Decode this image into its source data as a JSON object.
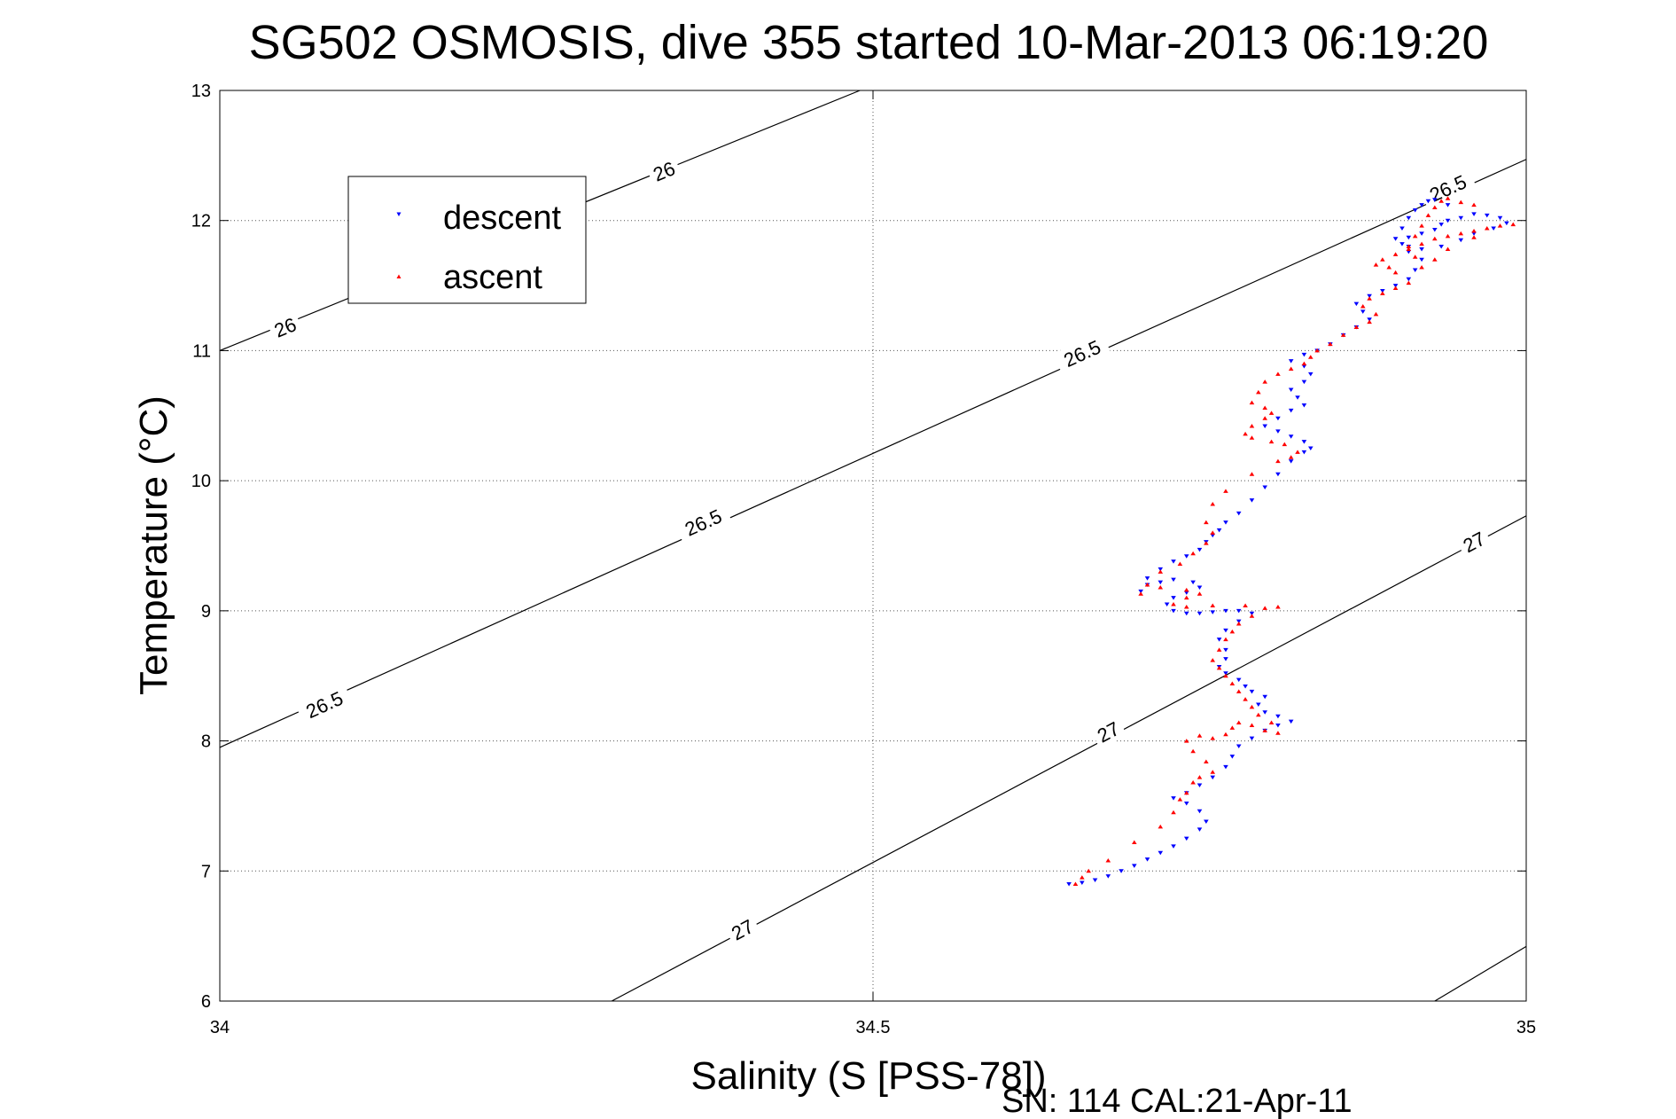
{
  "chart_data": {
    "type": "scatter",
    "title": "SG502 OSMOSIS, dive 355 started 10-Mar-2013 06:19:20",
    "xlabel": "Salinity (S [PSS-78])",
    "ylabel": "Temperature (°C)",
    "footer": "SN: 114  CAL:21-Apr-11",
    "xlim": [
      34,
      35
    ],
    "ylim": [
      6,
      13
    ],
    "xticks": [
      34,
      34.5,
      35
    ],
    "xtick_labels": [
      "34",
      "34.5",
      "35"
    ],
    "yticks": [
      6,
      7,
      8,
      9,
      10,
      11,
      12,
      13
    ],
    "ytick_labels": [
      "6",
      "7",
      "8",
      "9",
      "10",
      "11",
      "12",
      "13"
    ],
    "grid": true,
    "legend": {
      "position": "top-left",
      "entries": [
        "descent",
        "ascent"
      ]
    },
    "colors": {
      "descent": "#0000ff",
      "ascent": "#ff0000",
      "contour": "#000000"
    },
    "contours": [
      {
        "label": "26",
        "points": [
          [
            34.0,
            11.0
          ],
          [
            34.49,
            13.0
          ]
        ],
        "label_at": [
          [
            34.05,
            11.18
          ],
          [
            34.34,
            12.38
          ]
        ]
      },
      {
        "label": "26.5",
        "points": [
          [
            34.0,
            7.95
          ],
          [
            35.0,
            12.47
          ]
        ],
        "label_at": [
          [
            34.08,
            8.28
          ],
          [
            34.37,
            9.68
          ],
          [
            34.66,
            10.98
          ],
          [
            34.94,
            12.25
          ]
        ]
      },
      {
        "label": "27",
        "points": [
          [
            34.3,
            6.0
          ],
          [
            35.0,
            9.73
          ]
        ],
        "label_at": [
          [
            34.4,
            6.55
          ],
          [
            34.68,
            8.07
          ],
          [
            34.96,
            9.53
          ]
        ]
      },
      {
        "label": "",
        "points": [
          [
            34.93,
            6.0
          ],
          [
            35.0,
            6.42
          ]
        ],
        "label_at": []
      }
    ],
    "series": [
      {
        "name": "descent",
        "marker": "triangle-down",
        "points": [
          [
            34.65,
            6.9
          ],
          [
            34.66,
            6.91
          ],
          [
            34.67,
            6.93
          ],
          [
            34.68,
            6.96
          ],
          [
            34.69,
            7.0
          ],
          [
            34.7,
            7.04
          ],
          [
            34.71,
            7.09
          ],
          [
            34.72,
            7.14
          ],
          [
            34.73,
            7.19
          ],
          [
            34.74,
            7.25
          ],
          [
            34.75,
            7.32
          ],
          [
            34.755,
            7.38
          ],
          [
            34.75,
            7.46
          ],
          [
            34.74,
            7.52
          ],
          [
            34.73,
            7.56
          ],
          [
            34.74,
            7.6
          ],
          [
            34.75,
            7.66
          ],
          [
            34.76,
            7.72
          ],
          [
            34.77,
            7.8
          ],
          [
            34.775,
            7.88
          ],
          [
            34.78,
            7.96
          ],
          [
            34.79,
            8.02
          ],
          [
            34.8,
            8.08
          ],
          [
            34.81,
            8.12
          ],
          [
            34.82,
            8.15
          ],
          [
            34.81,
            8.19
          ],
          [
            34.8,
            8.22
          ],
          [
            34.795,
            8.28
          ],
          [
            34.8,
            8.34
          ],
          [
            34.79,
            8.38
          ],
          [
            34.785,
            8.42
          ],
          [
            34.78,
            8.47
          ],
          [
            34.77,
            8.52
          ],
          [
            34.765,
            8.57
          ],
          [
            34.77,
            8.63
          ],
          [
            34.77,
            8.7
          ],
          [
            34.765,
            8.78
          ],
          [
            34.77,
            8.85
          ],
          [
            34.78,
            8.92
          ],
          [
            34.79,
            8.98
          ],
          [
            34.78,
            9.0
          ],
          [
            34.77,
            9.0
          ],
          [
            34.76,
            8.99
          ],
          [
            34.75,
            8.98
          ],
          [
            34.74,
            8.98
          ],
          [
            34.73,
            9.0
          ],
          [
            34.725,
            9.05
          ],
          [
            34.73,
            9.1
          ],
          [
            34.74,
            9.14
          ],
          [
            34.75,
            9.18
          ],
          [
            34.745,
            9.22
          ],
          [
            34.73,
            9.24
          ],
          [
            34.72,
            9.22
          ],
          [
            34.71,
            9.2
          ],
          [
            34.705,
            9.15
          ],
          [
            34.71,
            9.25
          ],
          [
            34.72,
            9.32
          ],
          [
            34.73,
            9.38
          ],
          [
            34.74,
            9.42
          ],
          [
            34.75,
            9.47
          ],
          [
            34.755,
            9.53
          ],
          [
            34.76,
            9.58
          ],
          [
            34.765,
            9.62
          ],
          [
            34.77,
            9.68
          ],
          [
            34.78,
            9.75
          ],
          [
            34.79,
            9.85
          ],
          [
            34.8,
            9.95
          ],
          [
            34.81,
            10.05
          ],
          [
            34.82,
            10.15
          ],
          [
            34.83,
            10.22
          ],
          [
            34.835,
            10.25
          ],
          [
            34.83,
            10.3
          ],
          [
            34.82,
            10.34
          ],
          [
            34.81,
            10.38
          ],
          [
            34.8,
            10.42
          ],
          [
            34.81,
            10.48
          ],
          [
            34.82,
            10.54
          ],
          [
            34.83,
            10.58
          ],
          [
            34.825,
            10.64
          ],
          [
            34.82,
            10.7
          ],
          [
            34.83,
            10.76
          ],
          [
            34.835,
            10.82
          ],
          [
            34.83,
            10.88
          ],
          [
            34.82,
            10.92
          ],
          [
            34.83,
            10.97
          ],
          [
            34.84,
            11.0
          ],
          [
            34.85,
            11.05
          ],
          [
            34.86,
            11.12
          ],
          [
            34.87,
            11.18
          ],
          [
            34.88,
            11.24
          ],
          [
            34.875,
            11.3
          ],
          [
            34.87,
            11.36
          ],
          [
            34.88,
            11.42
          ],
          [
            34.89,
            11.46
          ],
          [
            34.9,
            11.5
          ],
          [
            34.91,
            11.55
          ],
          [
            34.915,
            11.62
          ],
          [
            34.92,
            11.7
          ],
          [
            34.91,
            11.76
          ],
          [
            34.905,
            11.82
          ],
          [
            34.91,
            11.87
          ],
          [
            34.92,
            11.9
          ],
          [
            34.93,
            11.93
          ],
          [
            34.935,
            11.97
          ],
          [
            34.94,
            12.0
          ],
          [
            34.95,
            12.02
          ],
          [
            34.96,
            12.05
          ],
          [
            34.97,
            12.04
          ],
          [
            34.98,
            12.02
          ],
          [
            34.985,
            11.98
          ],
          [
            34.975,
            11.94
          ],
          [
            34.96,
            11.9
          ],
          [
            34.95,
            11.85
          ],
          [
            34.935,
            11.8
          ],
          [
            34.92,
            11.78
          ],
          [
            34.91,
            11.8
          ],
          [
            34.9,
            11.86
          ],
          [
            34.905,
            11.94
          ],
          [
            34.91,
            12.02
          ],
          [
            34.915,
            12.08
          ],
          [
            34.92,
            12.12
          ],
          [
            34.925,
            12.15
          ],
          [
            34.93,
            12.16
          ],
          [
            34.94,
            12.12
          ]
        ]
      },
      {
        "name": "ascent",
        "marker": "triangle-up",
        "points": [
          [
            34.655,
            6.9
          ],
          [
            34.66,
            6.95
          ],
          [
            34.665,
            7.0
          ],
          [
            34.68,
            7.08
          ],
          [
            34.7,
            7.22
          ],
          [
            34.72,
            7.34
          ],
          [
            34.73,
            7.45
          ],
          [
            34.735,
            7.55
          ],
          [
            34.74,
            7.6
          ],
          [
            34.745,
            7.68
          ],
          [
            34.75,
            7.72
          ],
          [
            34.76,
            7.76
          ],
          [
            34.755,
            7.84
          ],
          [
            34.745,
            7.92
          ],
          [
            34.74,
            8.0
          ],
          [
            34.75,
            8.04
          ],
          [
            34.76,
            8.02
          ],
          [
            34.77,
            8.05
          ],
          [
            34.775,
            8.1
          ],
          [
            34.78,
            8.14
          ],
          [
            34.79,
            8.12
          ],
          [
            34.8,
            8.08
          ],
          [
            34.81,
            8.06
          ],
          [
            34.805,
            8.14
          ],
          [
            34.795,
            8.2
          ],
          [
            34.79,
            8.26
          ],
          [
            34.785,
            8.32
          ],
          [
            34.78,
            8.38
          ],
          [
            34.775,
            8.44
          ],
          [
            34.77,
            8.5
          ],
          [
            34.765,
            8.56
          ],
          [
            34.76,
            8.62
          ],
          [
            34.765,
            8.7
          ],
          [
            34.77,
            8.78
          ],
          [
            34.775,
            8.84
          ],
          [
            34.78,
            8.9
          ],
          [
            34.79,
            8.96
          ],
          [
            34.8,
            9.02
          ],
          [
            34.81,
            9.03
          ],
          [
            34.785,
            9.04
          ],
          [
            34.76,
            9.04
          ],
          [
            34.74,
            9.03
          ],
          [
            34.73,
            9.05
          ],
          [
            34.74,
            9.1
          ],
          [
            34.75,
            9.13
          ],
          [
            34.74,
            9.16
          ],
          [
            34.72,
            9.18
          ],
          [
            34.71,
            9.2
          ],
          [
            34.705,
            9.13
          ],
          [
            34.72,
            9.3
          ],
          [
            34.735,
            9.36
          ],
          [
            34.745,
            9.44
          ],
          [
            34.755,
            9.52
          ],
          [
            34.76,
            9.6
          ],
          [
            34.755,
            9.68
          ],
          [
            34.76,
            9.82
          ],
          [
            34.77,
            9.92
          ],
          [
            34.79,
            10.05
          ],
          [
            34.81,
            10.15
          ],
          [
            34.82,
            10.18
          ],
          [
            34.825,
            10.22
          ],
          [
            34.815,
            10.28
          ],
          [
            34.805,
            10.3
          ],
          [
            34.79,
            10.33
          ],
          [
            34.785,
            10.36
          ],
          [
            34.79,
            10.42
          ],
          [
            34.8,
            10.48
          ],
          [
            34.805,
            10.52
          ],
          [
            34.8,
            10.56
          ],
          [
            34.79,
            10.6
          ],
          [
            34.795,
            10.68
          ],
          [
            34.8,
            10.76
          ],
          [
            34.81,
            10.82
          ],
          [
            34.82,
            10.86
          ],
          [
            34.83,
            10.9
          ],
          [
            34.835,
            10.95
          ],
          [
            34.84,
            11.0
          ],
          [
            34.85,
            11.05
          ],
          [
            34.86,
            11.12
          ],
          [
            34.87,
            11.18
          ],
          [
            34.88,
            11.22
          ],
          [
            34.885,
            11.28
          ],
          [
            34.875,
            11.34
          ],
          [
            34.88,
            11.4
          ],
          [
            34.89,
            11.44
          ],
          [
            34.9,
            11.48
          ],
          [
            34.91,
            11.52
          ],
          [
            34.9,
            11.6
          ],
          [
            34.895,
            11.64
          ],
          [
            34.885,
            11.66
          ],
          [
            34.89,
            11.7
          ],
          [
            34.9,
            11.74
          ],
          [
            34.91,
            11.78
          ],
          [
            34.92,
            11.82
          ],
          [
            34.93,
            11.86
          ],
          [
            34.94,
            11.88
          ],
          [
            34.95,
            11.9
          ],
          [
            34.96,
            11.92
          ],
          [
            34.97,
            11.94
          ],
          [
            34.98,
            11.96
          ],
          [
            34.99,
            11.97
          ],
          [
            34.96,
            11.87
          ],
          [
            34.94,
            11.78
          ],
          [
            34.93,
            11.7
          ],
          [
            34.92,
            11.64
          ],
          [
            34.915,
            11.72
          ],
          [
            34.91,
            11.8
          ],
          [
            34.915,
            11.88
          ],
          [
            34.92,
            11.96
          ],
          [
            34.925,
            12.04
          ],
          [
            34.93,
            12.1
          ],
          [
            34.935,
            12.15
          ],
          [
            34.94,
            12.17
          ],
          [
            34.95,
            12.14
          ],
          [
            34.96,
            12.12
          ]
        ]
      }
    ]
  }
}
